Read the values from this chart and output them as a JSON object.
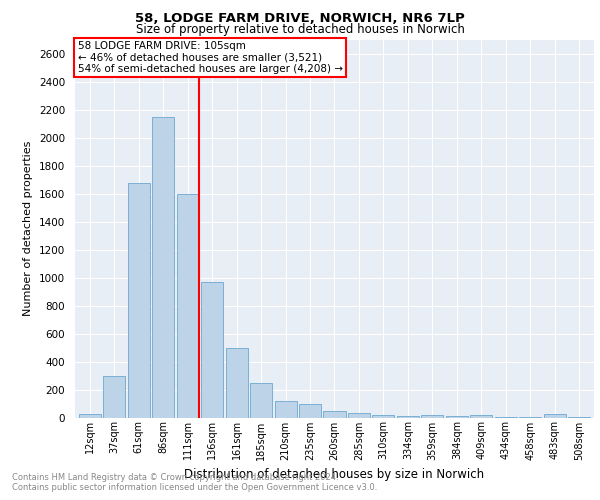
{
  "title": "58, LODGE FARM DRIVE, NORWICH, NR6 7LP",
  "subtitle": "Size of property relative to detached houses in Norwich",
  "xlabel": "Distribution of detached houses by size in Norwich",
  "ylabel": "Number of detached properties",
  "categories": [
    "12sqm",
    "37sqm",
    "61sqm",
    "86sqm",
    "111sqm",
    "136sqm",
    "161sqm",
    "185sqm",
    "210sqm",
    "235sqm",
    "260sqm",
    "285sqm",
    "310sqm",
    "334sqm",
    "359sqm",
    "384sqm",
    "409sqm",
    "434sqm",
    "458sqm",
    "483sqm",
    "508sqm"
  ],
  "values": [
    25,
    300,
    1680,
    2150,
    1600,
    970,
    500,
    248,
    120,
    100,
    50,
    35,
    15,
    10,
    20,
    10,
    20,
    5,
    5,
    25,
    5
  ],
  "bar_color": "#bdd4e8",
  "bar_edge_color": "#7aafd4",
  "annotation_title": "58 LODGE FARM DRIVE: 105sqm",
  "annotation_line1": "← 46% of detached houses are smaller (3,521)",
  "annotation_line2": "54% of semi-detached houses are larger (4,208) →",
  "ylim": [
    0,
    2700
  ],
  "yticks": [
    0,
    200,
    400,
    600,
    800,
    1000,
    1200,
    1400,
    1600,
    1800,
    2000,
    2200,
    2400,
    2600
  ],
  "footnote1": "Contains HM Land Registry data © Crown copyright and database right 2024.",
  "footnote2": "Contains public sector information licensed under the Open Government Licence v3.0.",
  "plot_bg_color": "#e8eef5",
  "grid_color": "#ffffff"
}
